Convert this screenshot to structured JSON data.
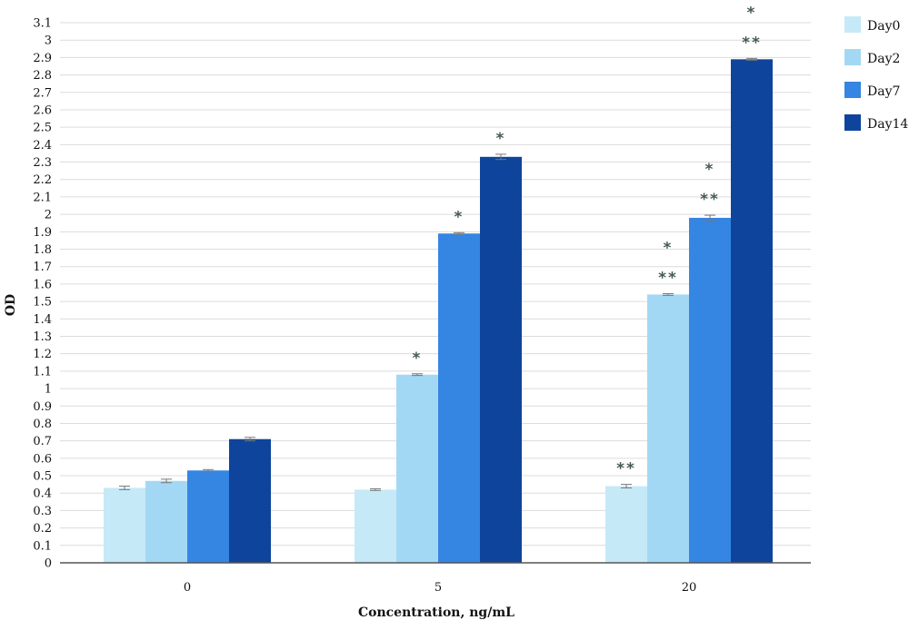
{
  "chart_data": {
    "type": "bar",
    "title": "",
    "xlabel": "Concentration, ng/mL",
    "ylabel": "OD",
    "ylim": [
      0,
      3.1
    ],
    "ytick_step": 0.1,
    "grid": true,
    "legend_position": "right",
    "categories": [
      "0",
      "5",
      "20"
    ],
    "series": [
      {
        "name": "Day0",
        "color": "#c6e9f8",
        "values": [
          0.43,
          0.42,
          0.44
        ],
        "errors": [
          0.01,
          0.005,
          0.01
        ]
      },
      {
        "name": "Day2",
        "color": "#a3d8f5",
        "values": [
          0.47,
          1.08,
          1.54
        ],
        "errors": [
          0.01,
          0.005,
          0.005
        ]
      },
      {
        "name": "Day7",
        "color": "#3585e3",
        "values": [
          0.53,
          1.89,
          1.98
        ],
        "errors": [
          0.005,
          0.005,
          0.015
        ]
      },
      {
        "name": "Day14",
        "color": "#0e449c",
        "values": [
          0.71,
          2.33,
          2.89
        ],
        "errors": [
          0.01,
          0.015,
          0.005
        ]
      }
    ],
    "annotations": [
      {
        "category": "5",
        "series": "Day2",
        "lines": [
          "*"
        ]
      },
      {
        "category": "5",
        "series": "Day7",
        "lines": [
          "*"
        ]
      },
      {
        "category": "5",
        "series": "Day14",
        "lines": [
          "*"
        ]
      },
      {
        "category": "20",
        "series": "Day0",
        "lines": [
          "**"
        ]
      },
      {
        "category": "20",
        "series": "Day2",
        "lines": [
          "*",
          "**"
        ]
      },
      {
        "category": "20",
        "series": "Day7",
        "lines": [
          "*",
          "**"
        ]
      },
      {
        "category": "20",
        "series": "Day14",
        "lines": [
          "*",
          "**"
        ]
      }
    ]
  }
}
